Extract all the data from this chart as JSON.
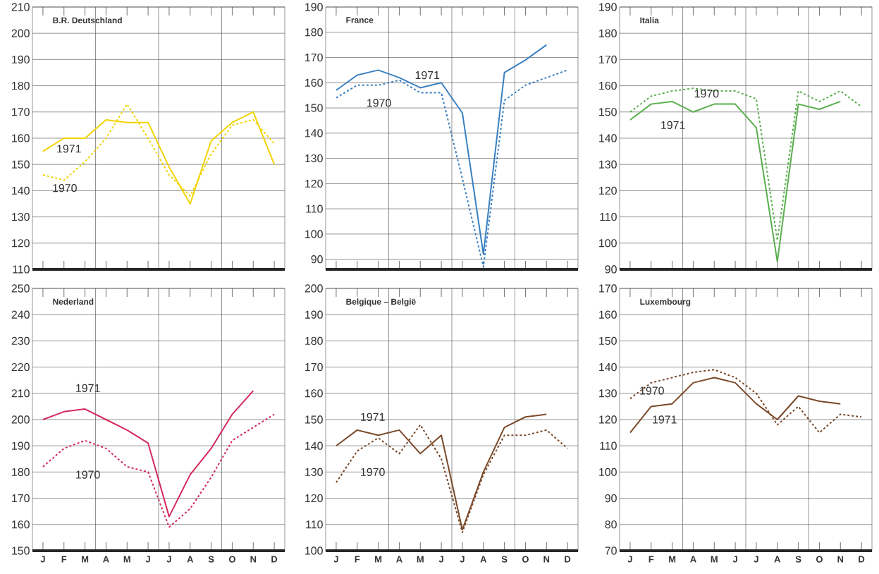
{
  "chart_data": [
    {
      "type": "line",
      "title": "B.R. Deutschland",
      "categories": [
        null,
        null,
        null,
        null,
        null,
        null,
        null,
        null,
        null,
        null,
        null,
        null
      ],
      "ylim": [
        110,
        210
      ],
      "yticks": [
        110,
        120,
        130,
        140,
        150,
        160,
        170,
        180,
        190,
        200,
        210
      ],
      "grid": "y",
      "series": [
        {
          "name": "1971",
          "color": "#f2d400",
          "line_style": "solid",
          "values": [
            155,
            160,
            160,
            167,
            166,
            166,
            149,
            135,
            159,
            166,
            170,
            150
          ]
        },
        {
          "name": "1970",
          "color": "#f2d400",
          "line_style": "dashed",
          "values": [
            146,
            144,
            151,
            160,
            173,
            160,
            146,
            138,
            154,
            165,
            167,
            158
          ]
        }
      ]
    },
    {
      "type": "line",
      "title": "France",
      "categories": [
        null,
        null,
        null,
        null,
        null,
        null,
        null,
        null,
        null,
        null,
        null,
        null
      ],
      "ylim": [
        86,
        190
      ],
      "yticks": [
        90,
        100,
        110,
        120,
        130,
        140,
        150,
        160,
        170,
        180,
        190
      ],
      "grid": "y",
      "series": [
        {
          "name": "1971",
          "color": "#3a80c2",
          "line_style": "solid",
          "values": [
            157,
            163,
            165,
            162,
            158,
            160,
            148,
            92,
            164,
            169,
            175,
            null
          ]
        },
        {
          "name": "1970",
          "color": "#3a80c2",
          "line_style": "dashed",
          "values": [
            154,
            159,
            159,
            161,
            156,
            156,
            122,
            87,
            153,
            159,
            162,
            165
          ]
        }
      ]
    },
    {
      "type": "line",
      "title": "Italia",
      "categories": [
        null,
        null,
        null,
        null,
        null,
        null,
        null,
        null,
        null,
        null,
        null,
        null
      ],
      "ylim": [
        90,
        190
      ],
      "yticks": [
        90,
        100,
        110,
        120,
        130,
        140,
        150,
        160,
        170,
        180,
        190
      ],
      "grid": "y",
      "series": [
        {
          "name": "1971",
          "color": "#5aae4e",
          "line_style": "solid",
          "values": [
            147,
            153,
            154,
            150,
            153,
            153,
            144,
            93,
            153,
            151,
            154,
            null
          ]
        },
        {
          "name": "1970",
          "color": "#5aae4e",
          "line_style": "dashed",
          "values": [
            150,
            156,
            158,
            159,
            158,
            158,
            155,
            101,
            158,
            154,
            158,
            152
          ]
        }
      ]
    },
    {
      "type": "line",
      "title": "Nederland",
      "categories": [
        "J",
        "F",
        "M",
        "A",
        "M",
        "J",
        "J",
        "A",
        "S",
        "O",
        "N",
        "D"
      ],
      "ylim": [
        150,
        250
      ],
      "yticks": [
        150,
        160,
        170,
        180,
        190,
        200,
        210,
        220,
        230,
        240,
        250
      ],
      "grid": "y",
      "series": [
        {
          "name": "1971",
          "color": "#d42a5c",
          "line_style": "solid",
          "values": [
            200,
            203,
            204,
            200,
            196,
            191,
            163,
            179,
            189,
            202,
            211,
            null
          ]
        },
        {
          "name": "1970",
          "color": "#d42a5c",
          "line_style": "dashed",
          "values": [
            182,
            189,
            192,
            189,
            182,
            180,
            159,
            166,
            178,
            192,
            197,
            202
          ]
        }
      ]
    },
    {
      "type": "line",
      "title": "Belgique – België",
      "categories": [
        "J",
        "F",
        "M",
        "A",
        "M",
        "J",
        "J",
        "A",
        "S",
        "O",
        "N",
        "D"
      ],
      "ylim": [
        100,
        200
      ],
      "yticks": [
        100,
        110,
        120,
        130,
        140,
        150,
        160,
        170,
        180,
        190,
        200
      ],
      "grid": "y",
      "series": [
        {
          "name": "1971",
          "color": "#7a4a2a",
          "line_style": "solid",
          "values": [
            140,
            146,
            144,
            146,
            137,
            144,
            108,
            130,
            147,
            151,
            152,
            null
          ]
        },
        {
          "name": "1970",
          "color": "#7a4a2a",
          "line_style": "dashed",
          "values": [
            126,
            138,
            143,
            137,
            148,
            135,
            107,
            129,
            144,
            144,
            146,
            139
          ]
        }
      ]
    },
    {
      "type": "line",
      "title": "Luxembourg",
      "categories": [
        "J",
        "F",
        "M",
        "A",
        "M",
        "J",
        "J",
        "A",
        "S",
        "O",
        "N",
        "D"
      ],
      "ylim": [
        70,
        170
      ],
      "yticks": [
        70,
        80,
        90,
        100,
        110,
        120,
        130,
        140,
        150,
        160,
        170
      ],
      "grid": "y",
      "series": [
        {
          "name": "1971",
          "color": "#7a4a2a",
          "line_style": "solid",
          "values": [
            115,
            125,
            126,
            134,
            136,
            134,
            126,
            120,
            129,
            127,
            126,
            null
          ]
        },
        {
          "name": "1970",
          "color": "#7a4a2a",
          "line_style": "dashed",
          "values": [
            128,
            134,
            136,
            138,
            139,
            136,
            130,
            118,
            125,
            115,
            122,
            121
          ]
        }
      ]
    }
  ]
}
